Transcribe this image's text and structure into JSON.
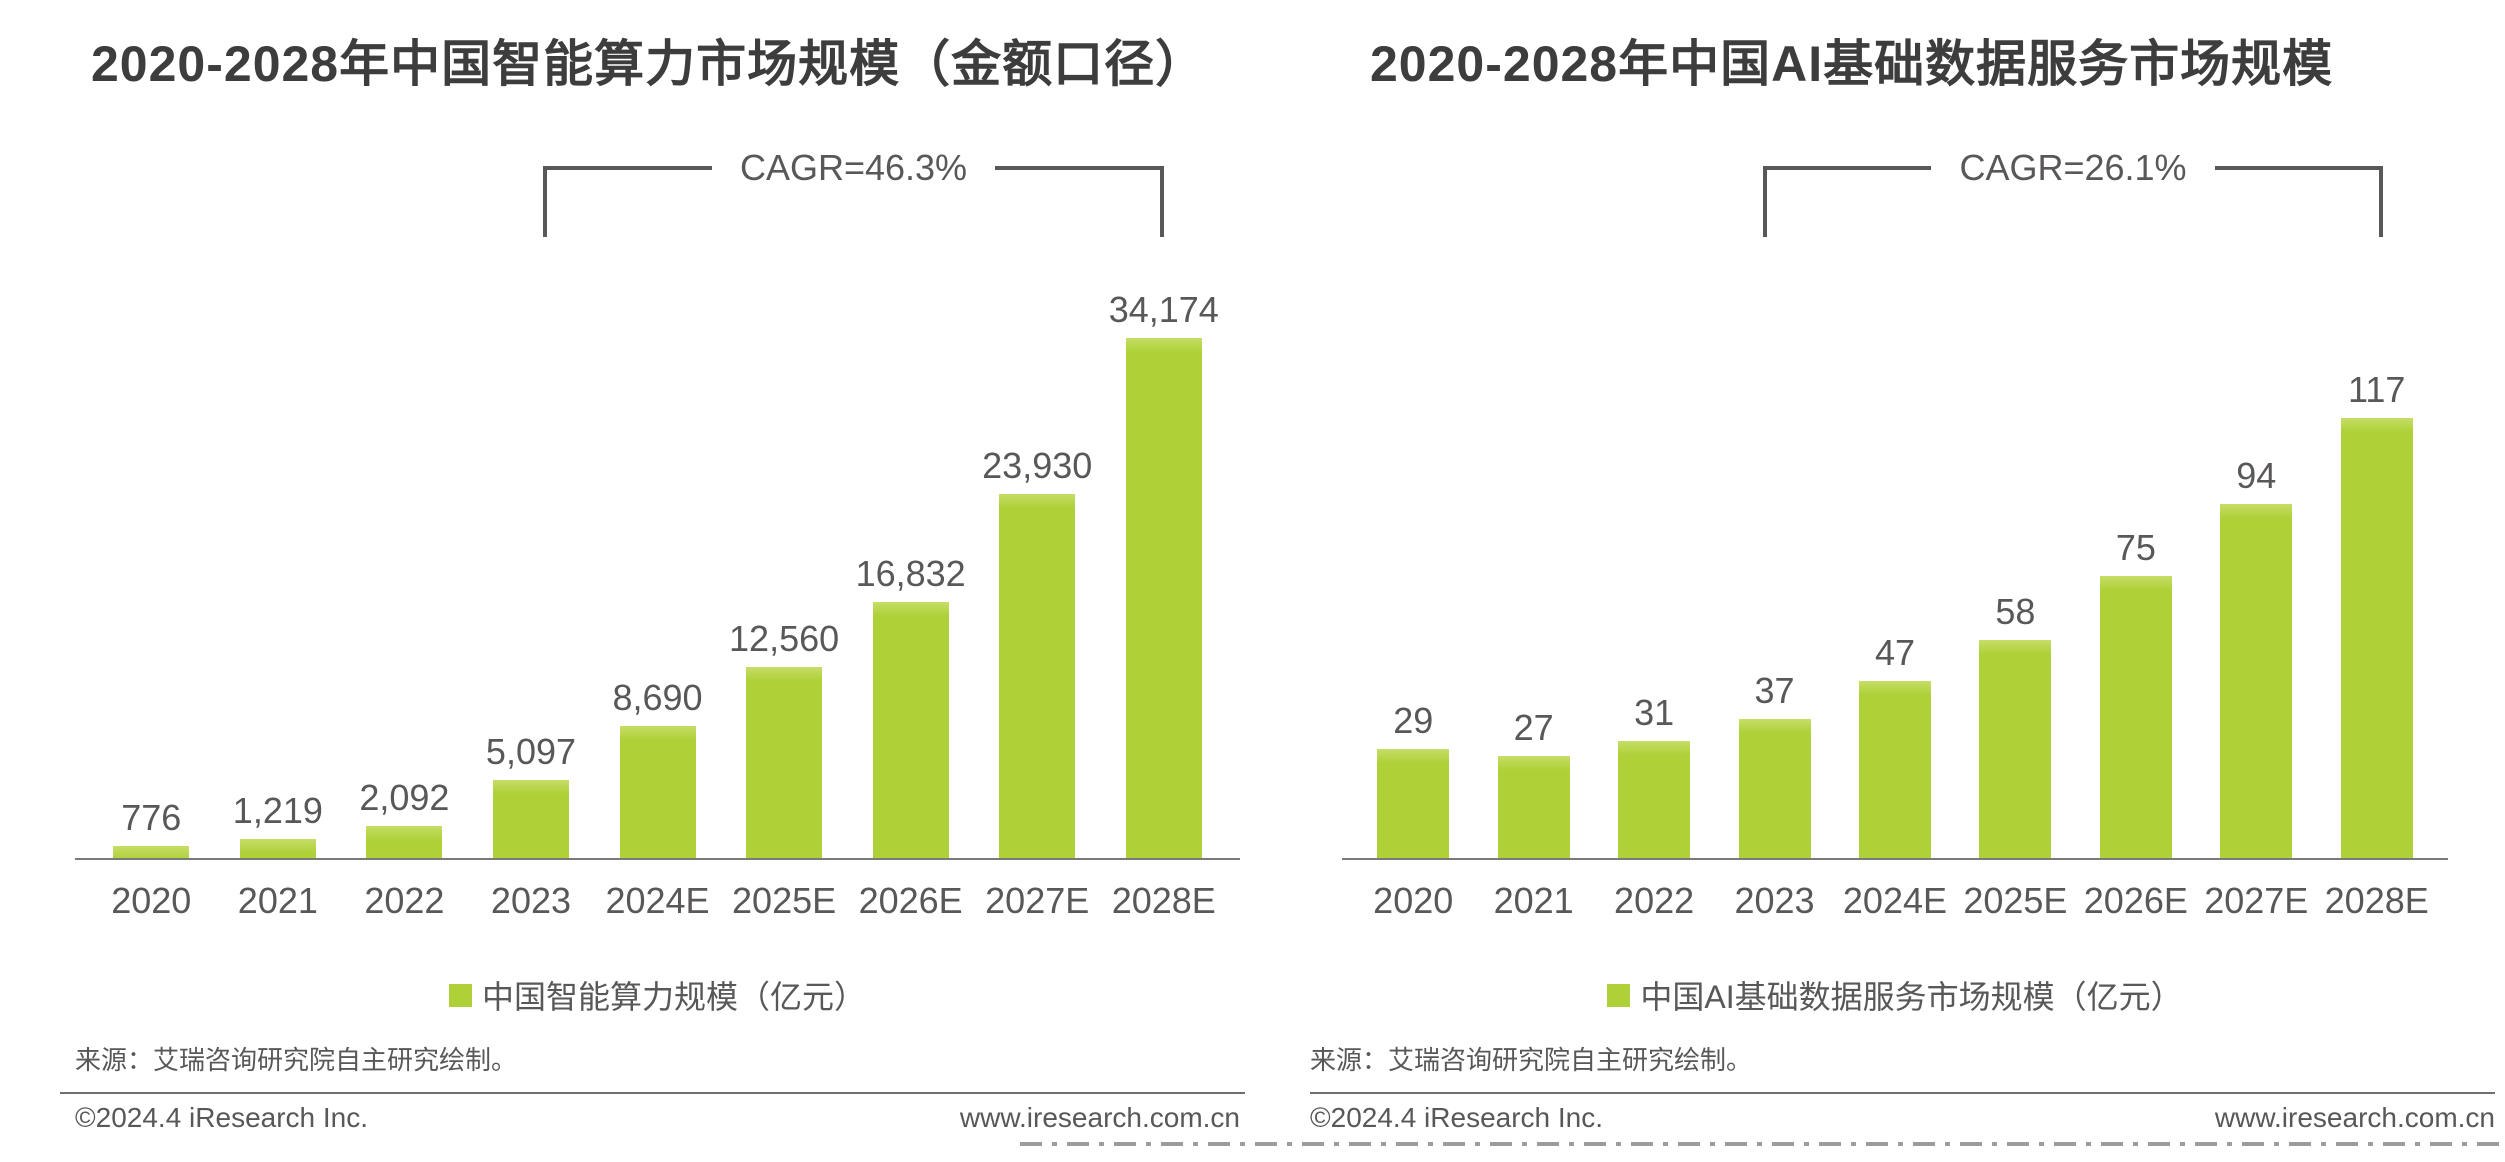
{
  "colors": {
    "bar": "#aed138",
    "bar_top_highlight": "#c6dd67",
    "title_text": "#3d3d3d",
    "body_text": "#595757",
    "axis_line": "#7a7a7a",
    "dash_line": "#9c9c9c"
  },
  "pages": [
    {
      "source": "来源：艾瑞咨询研究院自主研究绘制。",
      "copyright": "©2024.4 iResearch Inc.",
      "website": "www.iresearch.com.cn"
    },
    {
      "source": "来源：艾瑞咨询研究院自主研究绘制。",
      "copyright": "©2024.4 iResearch Inc.",
      "website": "www.iresearch.com.cn"
    }
  ],
  "chart_data": [
    {
      "type": "bar",
      "title": "2020-2028年中国智能算力市场规模（金额口径）",
      "cagr": "CAGR=46.3%",
      "legend": "中国智能算力规模（亿元）",
      "unit": "亿元",
      "categories": [
        "2020",
        "2021",
        "2022",
        "2023",
        "2024E",
        "2025E",
        "2026E",
        "2027E",
        "2028E"
      ],
      "values": [
        776,
        1219,
        2092,
        5097,
        8690,
        12560,
        16832,
        23930,
        34174
      ],
      "labels": [
        "776",
        "1,219",
        "2,092",
        "5,097",
        "8,690",
        "12,560",
        "16,832",
        "23,930",
        "34,174"
      ],
      "ylim": [
        0,
        36000
      ],
      "grid": false,
      "legend_position": "bottom"
    },
    {
      "type": "bar",
      "title": "2020-2028年中国AI基础数据服务市场规模",
      "cagr": "CAGR=26.1%",
      "legend": "中国AI基础数据服务市场规模（亿元）",
      "unit": "亿元",
      "categories": [
        "2020",
        "2021",
        "2022",
        "2023",
        "2024E",
        "2025E",
        "2026E",
        "2027E",
        "2028E"
      ],
      "values": [
        29,
        27,
        31,
        37,
        47,
        58,
        75,
        94,
        117
      ],
      "labels": [
        "29",
        "27",
        "31",
        "37",
        "47",
        "58",
        "75",
        "94",
        "117"
      ],
      "ylim": [
        0,
        125
      ],
      "grid": false,
      "legend_position": "bottom"
    }
  ]
}
